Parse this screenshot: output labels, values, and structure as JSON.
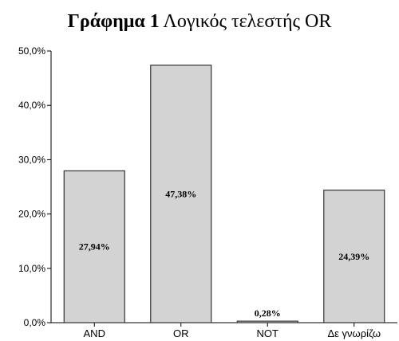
{
  "title": {
    "label": "Γράφημα 1",
    "text": "Λογικός τελεστής OR"
  },
  "chart_data": {
    "type": "bar",
    "categories": [
      "AND",
      "OR",
      "NOT",
      "Δε γνωρίζω"
    ],
    "values": [
      27.94,
      47.38,
      0.28,
      24.39
    ],
    "data_labels": [
      "27,94%",
      "47,38%",
      "0,28%",
      "24,39%"
    ],
    "ylim": [
      0,
      50
    ],
    "yticks": [
      0,
      10,
      20,
      30,
      40,
      50
    ],
    "ytick_labels": [
      "0,0%",
      "10,0%",
      "20,0%",
      "30,0%",
      "40,0%",
      "50,0%"
    ],
    "xlabel": "",
    "ylabel": "",
    "grid": false,
    "bar_color": "#d3d3d3",
    "bar_edge_color": "#333333"
  }
}
